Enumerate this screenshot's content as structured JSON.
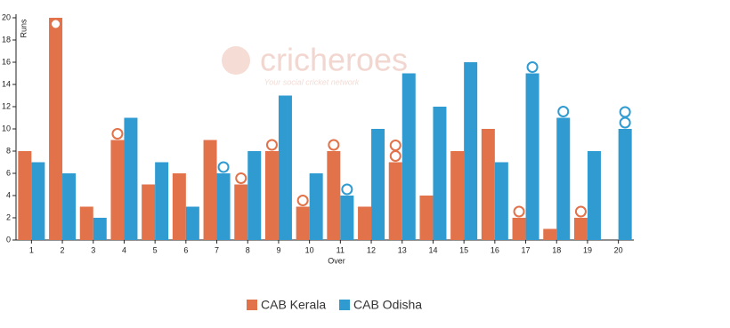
{
  "chart_data": {
    "type": "bar",
    "watermark": "cricheroes",
    "watermark_tagline": "Your social cricket network",
    "x_label": "Over",
    "y_label": "Runs",
    "categories": [
      "1",
      "2",
      "3",
      "4",
      "5",
      "6",
      "7",
      "8",
      "9",
      "10",
      "11",
      "12",
      "13",
      "14",
      "15",
      "16",
      "17",
      "18",
      "19",
      "20"
    ],
    "series": [
      {
        "name": "CAB Kerala",
        "color": "#e2724a",
        "values": [
          8,
          20,
          3,
          9,
          5,
          6,
          9,
          5,
          8,
          3,
          8,
          3,
          7,
          4,
          8,
          10,
          2,
          1,
          2,
          null
        ],
        "wickets": [
          0,
          1,
          0,
          1,
          0,
          0,
          0,
          1,
          1,
          1,
          1,
          0,
          2,
          0,
          0,
          0,
          1,
          0,
          1,
          0
        ]
      },
      {
        "name": "CAB Odisha",
        "color": "#2f9bd1",
        "values": [
          7,
          6,
          2,
          11,
          7,
          3,
          6,
          8,
          13,
          6,
          4,
          10,
          15,
          12,
          16,
          7,
          15,
          11,
          8,
          10
        ],
        "wickets": [
          0,
          0,
          0,
          0,
          0,
          0,
          1,
          0,
          0,
          0,
          1,
          0,
          0,
          0,
          0,
          0,
          1,
          1,
          0,
          2
        ]
      }
    ],
    "ylim": [
      0,
      20
    ],
    "yticks": [
      0,
      2,
      4,
      6,
      8,
      10,
      12,
      14,
      16,
      18,
      20
    ],
    "legend": "bottom"
  }
}
